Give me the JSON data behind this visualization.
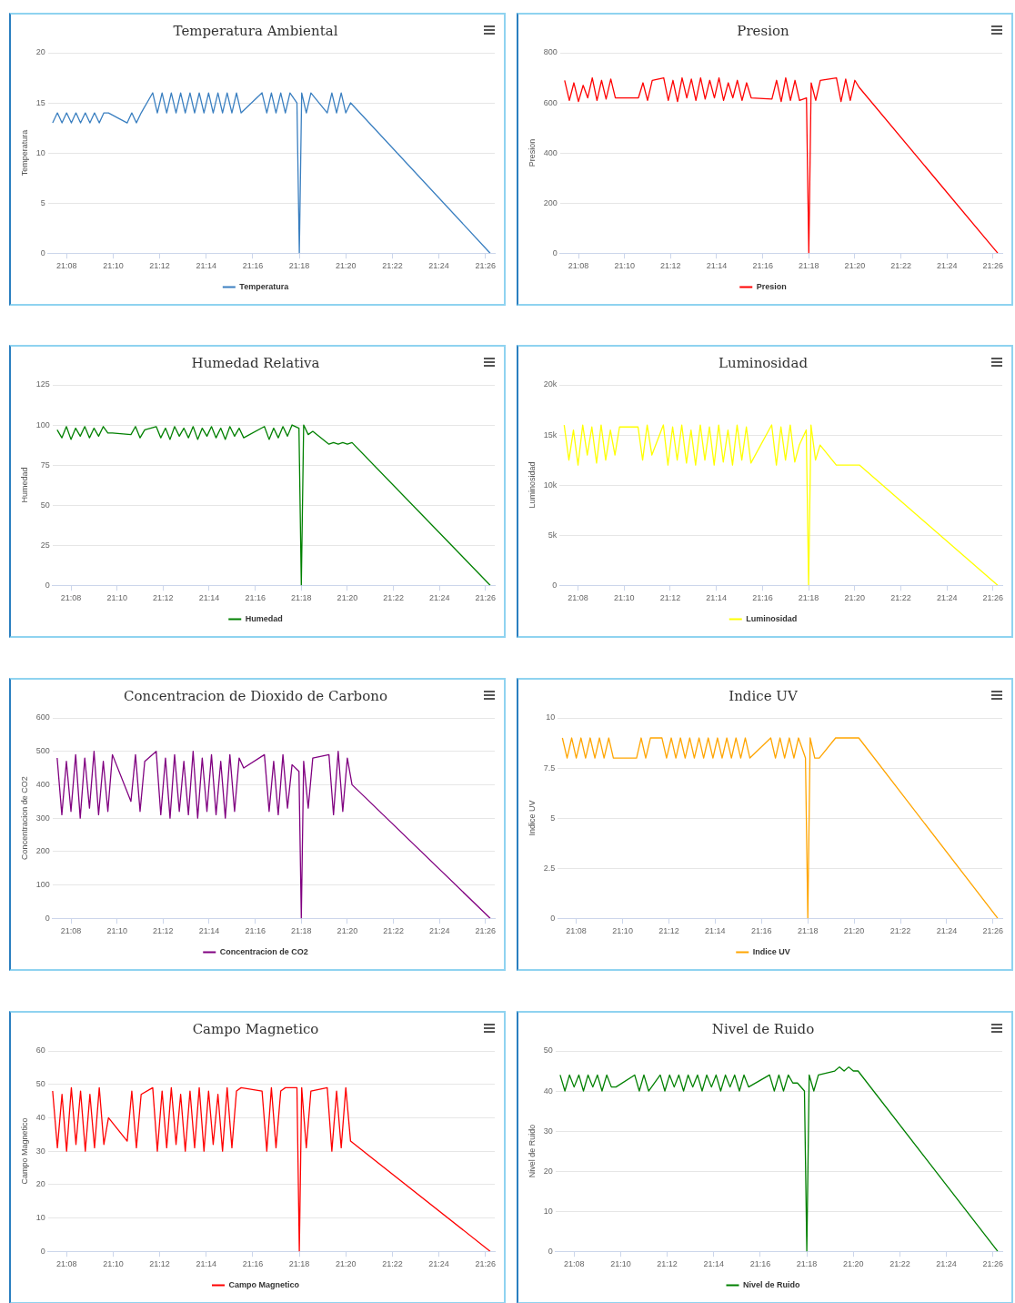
{
  "chart_data": [
    {
      "type": "line",
      "title": "Temperatura Ambiental",
      "ylabel": "Temperatura",
      "legend": "bottom",
      "grid": "y",
      "marker": "none",
      "xlim": [
        21.12,
        21.44
      ],
      "xticks": [
        {
          "value": 21.1333,
          "label": "21:08"
        },
        {
          "value": 21.1667,
          "label": "21:10"
        },
        {
          "value": 21.2,
          "label": "21:12"
        },
        {
          "value": 21.2333,
          "label": "21:14"
        },
        {
          "value": 21.2667,
          "label": "21:16"
        },
        {
          "value": 21.3,
          "label": "21:18"
        },
        {
          "value": 21.3333,
          "label": "21:20"
        },
        {
          "value": 21.3667,
          "label": "21:22"
        },
        {
          "value": 21.4,
          "label": "21:24"
        },
        {
          "value": 21.4333,
          "label": "21:26"
        }
      ],
      "ylim": [
        0,
        20
      ],
      "yticks": [
        0,
        5,
        10,
        15,
        20
      ],
      "x": [
        21.1233,
        21.1267,
        21.13,
        21.1333,
        21.1367,
        21.14,
        21.1433,
        21.1467,
        21.15,
        21.1533,
        21.1567,
        21.16,
        21.1633,
        21.1767,
        21.18,
        21.1833,
        21.1867,
        21.195,
        21.1983,
        21.2017,
        21.205,
        21.2083,
        21.2117,
        21.215,
        21.2183,
        21.2217,
        21.225,
        21.2283,
        21.2317,
        21.235,
        21.2383,
        21.2417,
        21.245,
        21.2483,
        21.2517,
        21.255,
        21.2583,
        21.2733,
        21.2767,
        21.28,
        21.2833,
        21.2867,
        21.29,
        21.2933,
        21.2983,
        21.3,
        21.3017,
        21.305,
        21.3083,
        21.32,
        21.3233,
        21.3267,
        21.33,
        21.3333,
        21.3367,
        21.4367
      ],
      "series": [
        {
          "name": "Temperatura",
          "color": "#3a7fc0",
          "values": [
            13,
            14,
            13,
            14,
            13,
            14,
            13,
            14,
            13,
            14,
            13,
            14,
            14,
            13,
            14,
            13,
            14,
            16,
            14,
            16,
            14,
            16,
            14,
            16,
            14,
            16,
            14,
            16,
            14,
            16,
            14,
            16,
            14,
            16,
            14,
            16,
            14,
            16,
            14,
            16,
            14,
            16,
            14,
            16,
            15,
            0,
            16,
            14,
            16,
            14,
            16,
            14,
            16,
            14,
            15,
            0
          ]
        }
      ]
    },
    {
      "type": "line",
      "title": "Presion",
      "ylabel": "Presion",
      "legend": "bottom",
      "grid": "y",
      "marker": "none",
      "xlim": [
        21.12,
        21.44
      ],
      "xticks": [
        {
          "value": 21.1333,
          "label": "21:08"
        },
        {
          "value": 21.1667,
          "label": "21:10"
        },
        {
          "value": 21.2,
          "label": "21:12"
        },
        {
          "value": 21.2333,
          "label": "21:14"
        },
        {
          "value": 21.2667,
          "label": "21:16"
        },
        {
          "value": 21.3,
          "label": "21:18"
        },
        {
          "value": 21.3333,
          "label": "21:20"
        },
        {
          "value": 21.3667,
          "label": "21:22"
        },
        {
          "value": 21.4,
          "label": "21:24"
        },
        {
          "value": 21.4333,
          "label": "21:26"
        }
      ],
      "ylim": [
        0,
        800
      ],
      "yticks": [
        0,
        200,
        400,
        600,
        800
      ],
      "x": [
        21.1233,
        21.1267,
        21.13,
        21.1333,
        21.1367,
        21.14,
        21.1433,
        21.1467,
        21.15,
        21.1533,
        21.1567,
        21.16,
        21.1633,
        21.1767,
        21.18,
        21.1833,
        21.1867,
        21.195,
        21.1983,
        21.2017,
        21.205,
        21.2083,
        21.2117,
        21.215,
        21.2183,
        21.2217,
        21.225,
        21.2283,
        21.2317,
        21.235,
        21.2383,
        21.2417,
        21.245,
        21.2483,
        21.2517,
        21.255,
        21.2583,
        21.2733,
        21.2767,
        21.28,
        21.2833,
        21.2867,
        21.29,
        21.2933,
        21.2983,
        21.3,
        21.3017,
        21.305,
        21.3083,
        21.32,
        21.3233,
        21.3267,
        21.33,
        21.3333,
        21.3367,
        21.4367
      ],
      "series": [
        {
          "name": "Presion",
          "color": "#ff0000",
          "values": [
            690,
            610,
            680,
            605,
            670,
            620,
            700,
            610,
            690,
            615,
            695,
            620,
            620,
            620,
            680,
            610,
            690,
            700,
            610,
            690,
            605,
            700,
            620,
            695,
            610,
            700,
            615,
            690,
            620,
            700,
            610,
            680,
            620,
            690,
            610,
            680,
            620,
            615,
            690,
            605,
            700,
            610,
            690,
            610,
            620,
            0,
            680,
            610,
            690,
            700,
            605,
            695,
            610,
            690,
            660,
            0
          ]
        }
      ]
    },
    {
      "type": "line",
      "title": "Humedad Relativa",
      "ylabel": "Humedad",
      "legend": "bottom",
      "grid": "y",
      "marker": "none",
      "xlim": [
        21.12,
        21.44
      ],
      "xticks": [
        {
          "value": 21.1333,
          "label": "21:08"
        },
        {
          "value": 21.1667,
          "label": "21:10"
        },
        {
          "value": 21.2,
          "label": "21:12"
        },
        {
          "value": 21.2333,
          "label": "21:14"
        },
        {
          "value": 21.2667,
          "label": "21:16"
        },
        {
          "value": 21.3,
          "label": "21:18"
        },
        {
          "value": 21.3333,
          "label": "21:20"
        },
        {
          "value": 21.3667,
          "label": "21:22"
        },
        {
          "value": 21.4,
          "label": "21:24"
        },
        {
          "value": 21.4333,
          "label": "21:26"
        }
      ],
      "ylim": [
        0,
        125
      ],
      "yticks": [
        0,
        25,
        50,
        75,
        100,
        125
      ],
      "x": [
        21.1233,
        21.1267,
        21.13,
        21.1333,
        21.1367,
        21.14,
        21.1433,
        21.1467,
        21.15,
        21.1533,
        21.1567,
        21.16,
        21.1633,
        21.1767,
        21.18,
        21.1833,
        21.1867,
        21.195,
        21.1983,
        21.2017,
        21.205,
        21.2083,
        21.2117,
        21.215,
        21.2183,
        21.2217,
        21.225,
        21.2283,
        21.2317,
        21.235,
        21.2383,
        21.2417,
        21.245,
        21.2483,
        21.2517,
        21.255,
        21.2583,
        21.2733,
        21.2767,
        21.28,
        21.2833,
        21.2867,
        21.29,
        21.2933,
        21.2983,
        21.3,
        21.3017,
        21.305,
        21.3083,
        21.32,
        21.3233,
        21.3267,
        21.33,
        21.3333,
        21.3367,
        21.4367
      ],
      "series": [
        {
          "name": "Humedad",
          "color": "#008000",
          "values": [
            97,
            92,
            99,
            91,
            98,
            93,
            99,
            92,
            98,
            93,
            99,
            95,
            95,
            94,
            99,
            92,
            97,
            99,
            92,
            98,
            91,
            99,
            93,
            98,
            92,
            99,
            91,
            98,
            93,
            99,
            92,
            98,
            91,
            99,
            93,
            98,
            92,
            99,
            91,
            98,
            92,
            99,
            93,
            100,
            98,
            0,
            100,
            94,
            96,
            88,
            89,
            88,
            89,
            88,
            89,
            0
          ]
        }
      ]
    },
    {
      "type": "line",
      "title": "Luminosidad",
      "ylabel": "Luminosidad",
      "legend": "bottom",
      "grid": "y",
      "marker": "none",
      "xlim": [
        21.12,
        21.44
      ],
      "xticks": [
        {
          "value": 21.1333,
          "label": "21:08"
        },
        {
          "value": 21.1667,
          "label": "21:10"
        },
        {
          "value": 21.2,
          "label": "21:12"
        },
        {
          "value": 21.2333,
          "label": "21:14"
        },
        {
          "value": 21.2667,
          "label": "21:16"
        },
        {
          "value": 21.3,
          "label": "21:18"
        },
        {
          "value": 21.3333,
          "label": "21:20"
        },
        {
          "value": 21.3667,
          "label": "21:22"
        },
        {
          "value": 21.4,
          "label": "21:24"
        },
        {
          "value": 21.4333,
          "label": "21:26"
        }
      ],
      "ylim": [
        0,
        20000
      ],
      "yticks": [
        0,
        {
          "value": 5000,
          "label": "5k"
        },
        {
          "value": 10000,
          "label": "10k"
        },
        {
          "value": 15000,
          "label": "15k"
        },
        {
          "value": 20000,
          "label": "20k"
        }
      ],
      "x": [
        21.1233,
        21.1267,
        21.13,
        21.1333,
        21.1367,
        21.14,
        21.1433,
        21.1467,
        21.15,
        21.1533,
        21.1567,
        21.16,
        21.1633,
        21.1767,
        21.18,
        21.1833,
        21.1867,
        21.195,
        21.1983,
        21.2017,
        21.205,
        21.2083,
        21.2117,
        21.215,
        21.2183,
        21.2217,
        21.225,
        21.2283,
        21.2317,
        21.235,
        21.2383,
        21.2417,
        21.245,
        21.2483,
        21.2517,
        21.255,
        21.2583,
        21.2733,
        21.2767,
        21.28,
        21.2833,
        21.2867,
        21.29,
        21.2933,
        21.2983,
        21.3,
        21.3017,
        21.305,
        21.3083,
        21.32,
        21.3233,
        21.3267,
        21.33,
        21.3333,
        21.3367,
        21.4367
      ],
      "series": [
        {
          "name": "Luminosidad",
          "color": "#ffff00",
          "values": [
            16000,
            12500,
            15500,
            12000,
            16000,
            13000,
            15800,
            12200,
            16000,
            12500,
            15500,
            13000,
            15800,
            15800,
            12500,
            16000,
            13000,
            16000,
            12000,
            15800,
            12500,
            16000,
            12200,
            15500,
            12000,
            16000,
            12500,
            15800,
            12000,
            16000,
            12300,
            15500,
            12000,
            16000,
            12500,
            15800,
            12200,
            16000,
            12000,
            15800,
            12500,
            16000,
            12300,
            14000,
            15500,
            0,
            16000,
            12500,
            14000,
            12000,
            12000,
            12000,
            12000,
            12000,
            12000,
            0
          ]
        }
      ]
    },
    {
      "type": "line",
      "title": "Concentracion de Dioxido de Carbono",
      "ylabel": "Concentracion de CO2",
      "legend": "bottom",
      "grid": "y",
      "marker": "none",
      "xlim": [
        21.12,
        21.44
      ],
      "xticks": [
        {
          "value": 21.1333,
          "label": "21:08"
        },
        {
          "value": 21.1667,
          "label": "21:10"
        },
        {
          "value": 21.2,
          "label": "21:12"
        },
        {
          "value": 21.2333,
          "label": "21:14"
        },
        {
          "value": 21.2667,
          "label": "21:16"
        },
        {
          "value": 21.3,
          "label": "21:18"
        },
        {
          "value": 21.3333,
          "label": "21:20"
        },
        {
          "value": 21.3667,
          "label": "21:22"
        },
        {
          "value": 21.4,
          "label": "21:24"
        },
        {
          "value": 21.4333,
          "label": "21:26"
        }
      ],
      "ylim": [
        0,
        600
      ],
      "yticks": [
        0,
        100,
        200,
        300,
        400,
        500,
        600
      ],
      "x": [
        21.1233,
        21.1267,
        21.13,
        21.1333,
        21.1367,
        21.14,
        21.1433,
        21.1467,
        21.15,
        21.1533,
        21.1567,
        21.16,
        21.1633,
        21.1767,
        21.18,
        21.1833,
        21.1867,
        21.195,
        21.1983,
        21.2017,
        21.205,
        21.2083,
        21.2117,
        21.215,
        21.2183,
        21.2217,
        21.225,
        21.2283,
        21.2317,
        21.235,
        21.2383,
        21.2417,
        21.245,
        21.2483,
        21.2517,
        21.255,
        21.2583,
        21.2733,
        21.2767,
        21.28,
        21.2833,
        21.2867,
        21.29,
        21.2933,
        21.2983,
        21.3,
        21.3017,
        21.305,
        21.3083,
        21.32,
        21.3233,
        21.3267,
        21.33,
        21.3333,
        21.3367,
        21.4367
      ],
      "series": [
        {
          "name": "Concentracion de CO2",
          "color": "#800080",
          "values": [
            480,
            310,
            470,
            320,
            490,
            300,
            480,
            330,
            500,
            310,
            470,
            320,
            490,
            350,
            490,
            320,
            470,
            500,
            310,
            480,
            300,
            490,
            320,
            470,
            310,
            500,
            300,
            480,
            320,
            490,
            310,
            470,
            300,
            490,
            320,
            480,
            450,
            490,
            320,
            470,
            310,
            490,
            330,
            460,
            440,
            0,
            470,
            330,
            480,
            490,
            310,
            500,
            320,
            480,
            400,
            0
          ]
        }
      ]
    },
    {
      "type": "line",
      "title": "Indice UV",
      "ylabel": "Indice UV",
      "legend": "bottom",
      "grid": "y",
      "marker": "none",
      "xlim": [
        21.12,
        21.44
      ],
      "xticks": [
        {
          "value": 21.1333,
          "label": "21:08"
        },
        {
          "value": 21.1667,
          "label": "21:10"
        },
        {
          "value": 21.2,
          "label": "21:12"
        },
        {
          "value": 21.2333,
          "label": "21:14"
        },
        {
          "value": 21.2667,
          "label": "21:16"
        },
        {
          "value": 21.3,
          "label": "21:18"
        },
        {
          "value": 21.3333,
          "label": "21:20"
        },
        {
          "value": 21.3667,
          "label": "21:22"
        },
        {
          "value": 21.4,
          "label": "21:24"
        },
        {
          "value": 21.4333,
          "label": "21:26"
        }
      ],
      "ylim": [
        0,
        10
      ],
      "yticks": [
        0,
        2.5,
        5,
        7.5,
        10
      ],
      "x": [
        21.1233,
        21.1267,
        21.13,
        21.1333,
        21.1367,
        21.14,
        21.1433,
        21.1467,
        21.15,
        21.1533,
        21.1567,
        21.16,
        21.1633,
        21.1767,
        21.18,
        21.1833,
        21.1867,
        21.195,
        21.1983,
        21.2017,
        21.205,
        21.2083,
        21.2117,
        21.215,
        21.2183,
        21.2217,
        21.225,
        21.2283,
        21.2317,
        21.235,
        21.2383,
        21.2417,
        21.245,
        21.2483,
        21.2517,
        21.255,
        21.2583,
        21.2733,
        21.2767,
        21.28,
        21.2833,
        21.2867,
        21.29,
        21.2933,
        21.2983,
        21.3,
        21.3017,
        21.305,
        21.3083,
        21.32,
        21.3233,
        21.3267,
        21.33,
        21.3333,
        21.3367,
        21.4367
      ],
      "series": [
        {
          "name": "Indice UV",
          "color": "#ffa500",
          "values": [
            9,
            8,
            9,
            8,
            9,
            8,
            9,
            8,
            9,
            8,
            9,
            8,
            8,
            8,
            9,
            8,
            9,
            9,
            8,
            9,
            8,
            9,
            8,
            9,
            8,
            9,
            8,
            9,
            8,
            9,
            8,
            9,
            8,
            9,
            8,
            9,
            8,
            9,
            8,
            9,
            8,
            9,
            8,
            9,
            8,
            0,
            9,
            8,
            8,
            9,
            9,
            9,
            9,
            9,
            9,
            0
          ]
        }
      ]
    },
    {
      "type": "line",
      "title": "Campo Magnetico",
      "ylabel": "Campo Magnetico",
      "legend": "bottom",
      "grid": "y",
      "marker": "none",
      "xlim": [
        21.12,
        21.44
      ],
      "xticks": [
        {
          "value": 21.1333,
          "label": "21:08"
        },
        {
          "value": 21.1667,
          "label": "21:10"
        },
        {
          "value": 21.2,
          "label": "21:12"
        },
        {
          "value": 21.2333,
          "label": "21:14"
        },
        {
          "value": 21.2667,
          "label": "21:16"
        },
        {
          "value": 21.3,
          "label": "21:18"
        },
        {
          "value": 21.3333,
          "label": "21:20"
        },
        {
          "value": 21.3667,
          "label": "21:22"
        },
        {
          "value": 21.4,
          "label": "21:24"
        },
        {
          "value": 21.4333,
          "label": "21:26"
        }
      ],
      "ylim": [
        0,
        60
      ],
      "yticks": [
        0,
        10,
        20,
        30,
        40,
        50,
        60
      ],
      "x": [
        21.1233,
        21.1267,
        21.13,
        21.1333,
        21.1367,
        21.14,
        21.1433,
        21.1467,
        21.15,
        21.1533,
        21.1567,
        21.16,
        21.1633,
        21.1767,
        21.18,
        21.1833,
        21.1867,
        21.195,
        21.1983,
        21.2017,
        21.205,
        21.2083,
        21.2117,
        21.215,
        21.2183,
        21.2217,
        21.225,
        21.2283,
        21.2317,
        21.235,
        21.2383,
        21.2417,
        21.245,
        21.2483,
        21.2517,
        21.255,
        21.2583,
        21.2733,
        21.2767,
        21.28,
        21.2833,
        21.2867,
        21.29,
        21.2933,
        21.2983,
        21.3,
        21.3017,
        21.305,
        21.3083,
        21.32,
        21.3233,
        21.3267,
        21.33,
        21.3333,
        21.3367,
        21.4367
      ],
      "series": [
        {
          "name": "Campo Magnetico",
          "color": "#ff0000",
          "values": [
            48,
            31,
            47,
            30,
            49,
            32,
            48,
            30,
            47,
            31,
            49,
            32,
            40,
            33,
            48,
            31,
            47,
            49,
            30,
            48,
            31,
            49,
            32,
            47,
            30,
            48,
            31,
            49,
            30,
            48,
            32,
            47,
            30,
            49,
            31,
            48,
            49,
            48,
            30,
            49,
            31,
            48,
            49,
            49,
            49,
            0,
            49,
            31,
            48,
            49,
            30,
            48,
            31,
            49,
            33,
            0
          ]
        }
      ]
    },
    {
      "type": "line",
      "title": "Nivel de Ruido",
      "ylabel": "Nivel de Ruido",
      "legend": "bottom",
      "grid": "y",
      "marker": "none",
      "xlim": [
        21.12,
        21.44
      ],
      "xticks": [
        {
          "value": 21.1333,
          "label": "21:08"
        },
        {
          "value": 21.1667,
          "label": "21:10"
        },
        {
          "value": 21.2,
          "label": "21:12"
        },
        {
          "value": 21.2333,
          "label": "21:14"
        },
        {
          "value": 21.2667,
          "label": "21:16"
        },
        {
          "value": 21.3,
          "label": "21:18"
        },
        {
          "value": 21.3333,
          "label": "21:20"
        },
        {
          "value": 21.3667,
          "label": "21:22"
        },
        {
          "value": 21.4,
          "label": "21:24"
        },
        {
          "value": 21.4333,
          "label": "21:26"
        }
      ],
      "ylim": [
        0,
        50
      ],
      "yticks": [
        0,
        10,
        20,
        30,
        40,
        50
      ],
      "x": [
        21.1233,
        21.1267,
        21.13,
        21.1333,
        21.1367,
        21.14,
        21.1433,
        21.1467,
        21.15,
        21.1533,
        21.1567,
        21.16,
        21.1633,
        21.1767,
        21.18,
        21.1833,
        21.1867,
        21.195,
        21.1983,
        21.2017,
        21.205,
        21.2083,
        21.2117,
        21.215,
        21.2183,
        21.2217,
        21.225,
        21.2283,
        21.2317,
        21.235,
        21.2383,
        21.2417,
        21.245,
        21.2483,
        21.2517,
        21.255,
        21.2583,
        21.2733,
        21.2767,
        21.28,
        21.2833,
        21.2867,
        21.29,
        21.2933,
        21.2983,
        21.3,
        21.3017,
        21.305,
        21.3083,
        21.32,
        21.3233,
        21.3267,
        21.33,
        21.3333,
        21.3367,
        21.4367
      ],
      "series": [
        {
          "name": "Nivel de Ruido",
          "color": "#008000",
          "values": [
            44,
            40,
            44,
            41,
            44,
            40,
            44,
            41,
            44,
            40,
            44,
            41,
            41,
            44,
            40,
            44,
            40,
            44,
            40,
            44,
            41,
            44,
            40,
            44,
            41,
            44,
            40,
            44,
            41,
            44,
            40,
            44,
            41,
            44,
            40,
            44,
            41,
            44,
            40,
            44,
            40,
            44,
            42,
            42,
            40,
            0,
            44,
            40,
            44,
            45,
            46,
            45,
            46,
            45,
            45,
            0
          ]
        }
      ]
    }
  ]
}
